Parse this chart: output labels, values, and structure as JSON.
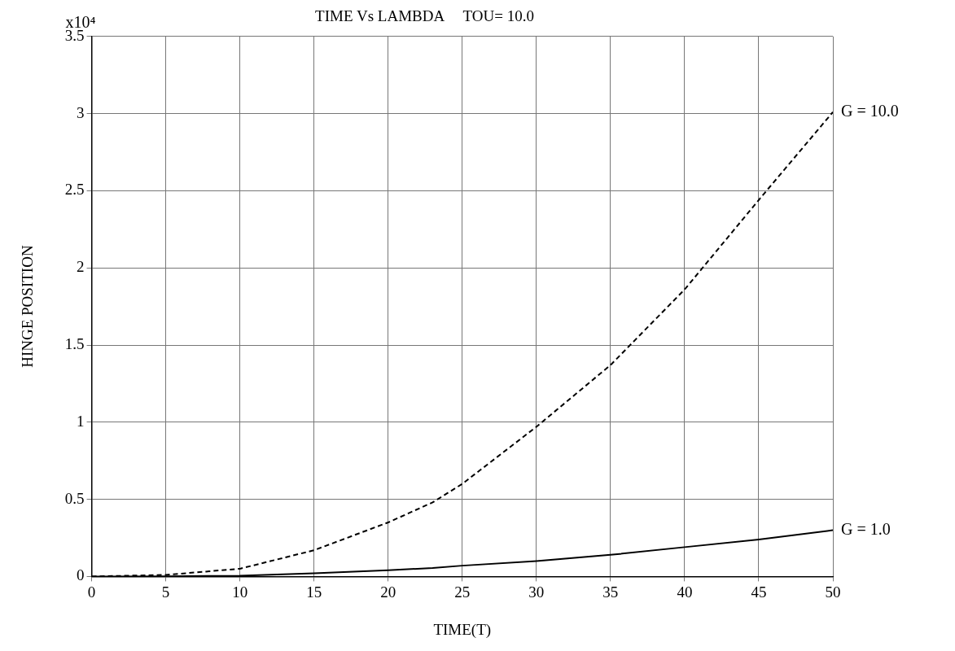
{
  "chart_data": {
    "type": "line",
    "title": "TIME Vs LAMBDA     TOU= 10.0",
    "xlabel": "TIME(T)",
    "ylabel": "HINGE POSITION",
    "annotations": [
      "x10⁴"
    ],
    "x": [
      0,
      5,
      10,
      15,
      20,
      23,
      25,
      30,
      35,
      40,
      45,
      50
    ],
    "series": [
      {
        "name": "G = 10.0",
        "color": "#000000",
        "line_style": "dashed",
        "values": [
          0,
          0.01,
          0.05,
          0.17,
          0.35,
          0.48,
          0.6,
          0.97,
          1.37,
          1.86,
          2.44,
          3.01
        ]
      },
      {
        "name": "G = 1.0",
        "color": "#000000",
        "line_style": "solid",
        "values": [
          0,
          0.001,
          0.005,
          0.02,
          0.04,
          0.055,
          0.07,
          0.1,
          0.14,
          0.19,
          0.24,
          0.3
        ]
      }
    ],
    "xlim": [
      0,
      50
    ],
    "xticks": [
      0,
      5,
      10,
      15,
      20,
      25,
      30,
      35,
      40,
      45,
      50
    ],
    "ylim": [
      0,
      3.5
    ],
    "yticks": [
      0,
      0.5,
      1,
      1.5,
      2,
      2.5,
      3,
      3.5
    ],
    "grid": true,
    "legend": false,
    "marker": "none"
  }
}
